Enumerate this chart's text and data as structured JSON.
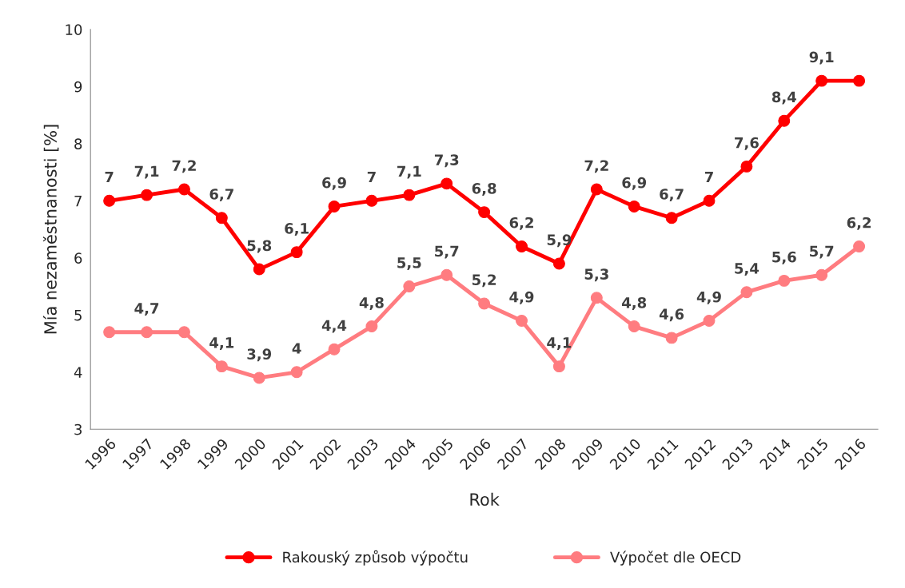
{
  "chart_data": {
    "type": "line",
    "xlabel": "Rok",
    "ylabel": "Mía nezaměstnanosti [%]",
    "categories": [
      "1996",
      "1997",
      "1998",
      "1999",
      "2000",
      "2001",
      "2002",
      "2003",
      "2004",
      "2005",
      "2006",
      "2007",
      "2008",
      "2009",
      "2010",
      "2011",
      "2012",
      "2013",
      "2014",
      "2015",
      "2016"
    ],
    "series": [
      {
        "name": "Rakouský způsob výpočtu",
        "color": "#ff0000",
        "values": [
          7,
          7.1,
          7.2,
          6.7,
          5.8,
          6.1,
          6.9,
          7,
          7.1,
          7.3,
          6.8,
          6.2,
          5.9,
          7.2,
          6.9,
          6.7,
          7,
          7.6,
          8.4,
          9.1,
          9.1
        ],
        "value_labels": [
          "7",
          "7,1",
          "7,2",
          "6,7",
          "5,8",
          "6,1",
          "6,9",
          "7",
          "7,1",
          "7,3",
          "6,8",
          "6,2",
          "5,9",
          "7,2",
          "6,9",
          "6,7",
          "7",
          "7,6",
          "8,4",
          "9,1",
          null
        ]
      },
      {
        "name": "Výpočet dle OECD",
        "color": "#ff7c80",
        "values": [
          4.7,
          4.7,
          4.7,
          4.1,
          3.9,
          4,
          4.4,
          4.8,
          5.5,
          5.7,
          5.2,
          4.9,
          4.1,
          5.3,
          4.8,
          4.6,
          4.9,
          5.4,
          5.6,
          5.7,
          6.2
        ],
        "value_labels": [
          null,
          "4,7",
          null,
          "4,1",
          "3,9",
          "4",
          "4,4",
          "4,8",
          "5,5",
          "5,7",
          "5,2",
          "4,9",
          "4,1",
          "5,3",
          "4,8",
          "4,6",
          "4,9",
          "5,4",
          "5,6",
          "5,7",
          "6,2"
        ]
      }
    ],
    "ylim": [
      3,
      10
    ],
    "yticks": [
      3,
      4,
      5,
      6,
      7,
      8,
      9,
      10
    ],
    "grid": false,
    "legend": "bottom",
    "marker": "circle",
    "line_style": "solid"
  }
}
